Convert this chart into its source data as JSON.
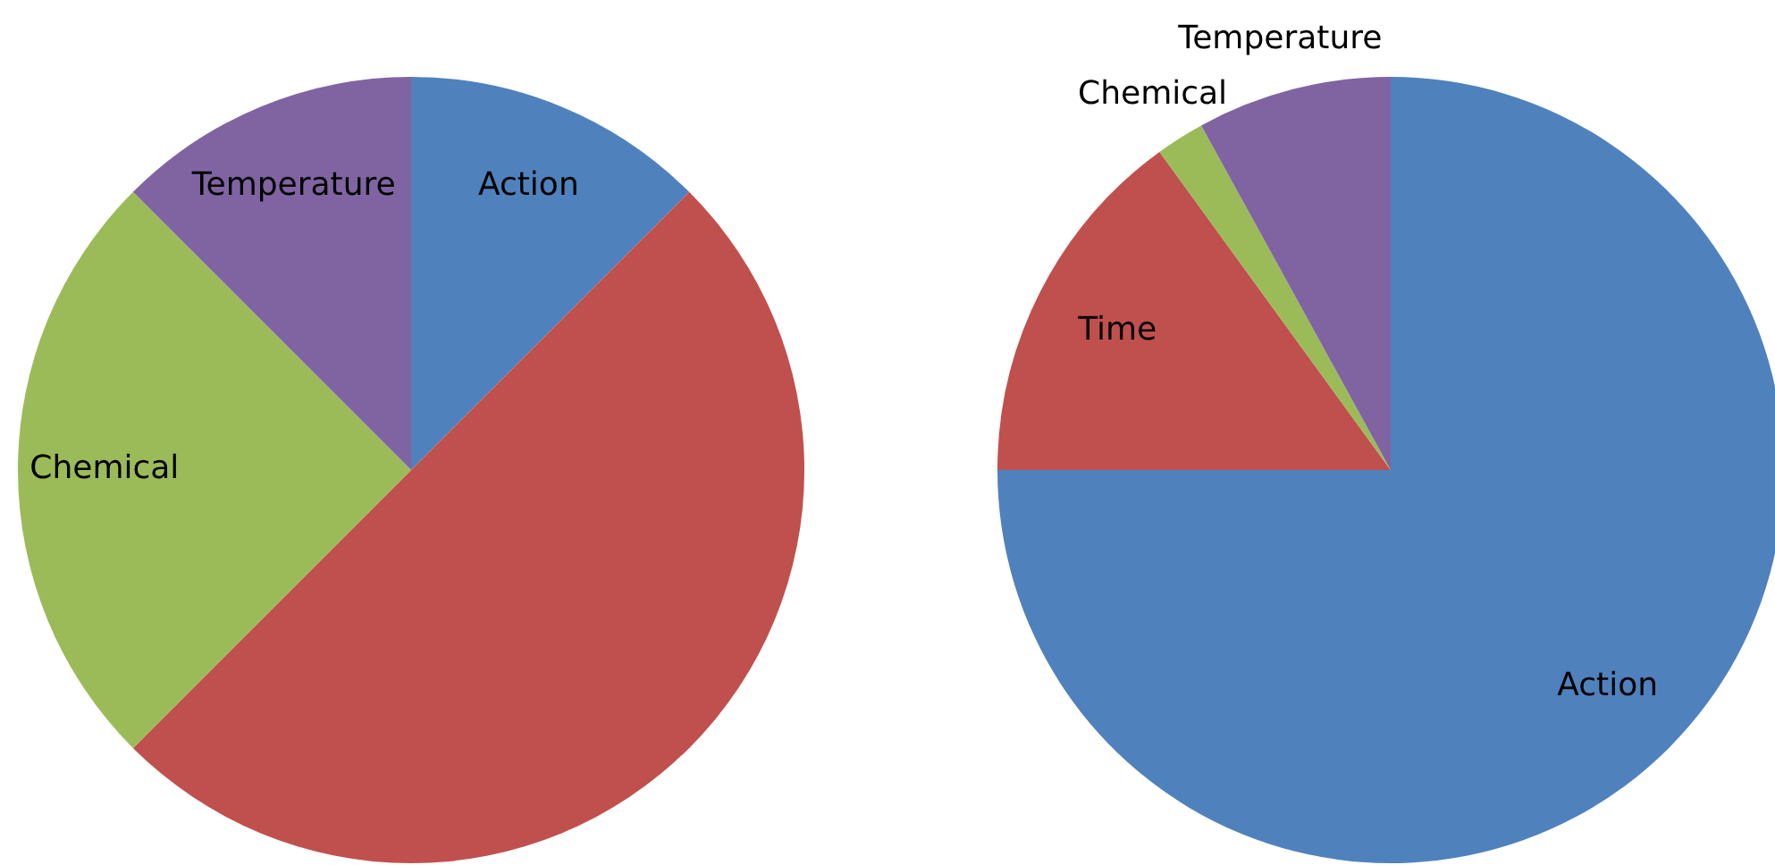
{
  "chart_data": [
    {
      "type": "pie",
      "categories": [
        "Action",
        null,
        "Chemical",
        "Temperature"
      ],
      "values": [
        12.5,
        50,
        25,
        12.5
      ],
      "colors": [
        "#4f81bd",
        "#c0504d",
        "#9bbb59",
        "#8064a2"
      ]
    },
    {
      "type": "pie",
      "categories": [
        "Action",
        "Time",
        "Chemical",
        "Temperature"
      ],
      "values": [
        75,
        15,
        2,
        8
      ],
      "colors": [
        "#4f81bd",
        "#c0504d",
        "#9bbb59",
        "#8064a2"
      ]
    }
  ]
}
